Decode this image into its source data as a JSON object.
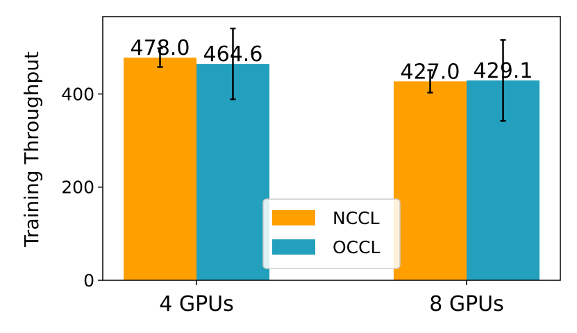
{
  "chart_data": {
    "type": "bar",
    "categories": [
      "4 GPUs",
      "8 GPUs"
    ],
    "series": [
      {
        "name": "NCCL",
        "values": [
          478.0,
          427.0
        ],
        "error": [
          20,
          24
        ],
        "color": "#ff9f00"
      },
      {
        "name": "OCCL",
        "values": [
          464.6,
          429.1
        ],
        "error": [
          76,
          87
        ],
        "color": "#22a0bd"
      }
    ],
    "value_labels": [
      [
        "478.0",
        "427.0"
      ],
      [
        "464.6",
        "429.1"
      ]
    ],
    "xlabel": "",
    "ylabel": "Training Throughput",
    "ylim": [
      0,
      566
    ],
    "yticks": [
      0,
      200,
      400
    ],
    "legend_position": "lower-center",
    "grid": false
  }
}
